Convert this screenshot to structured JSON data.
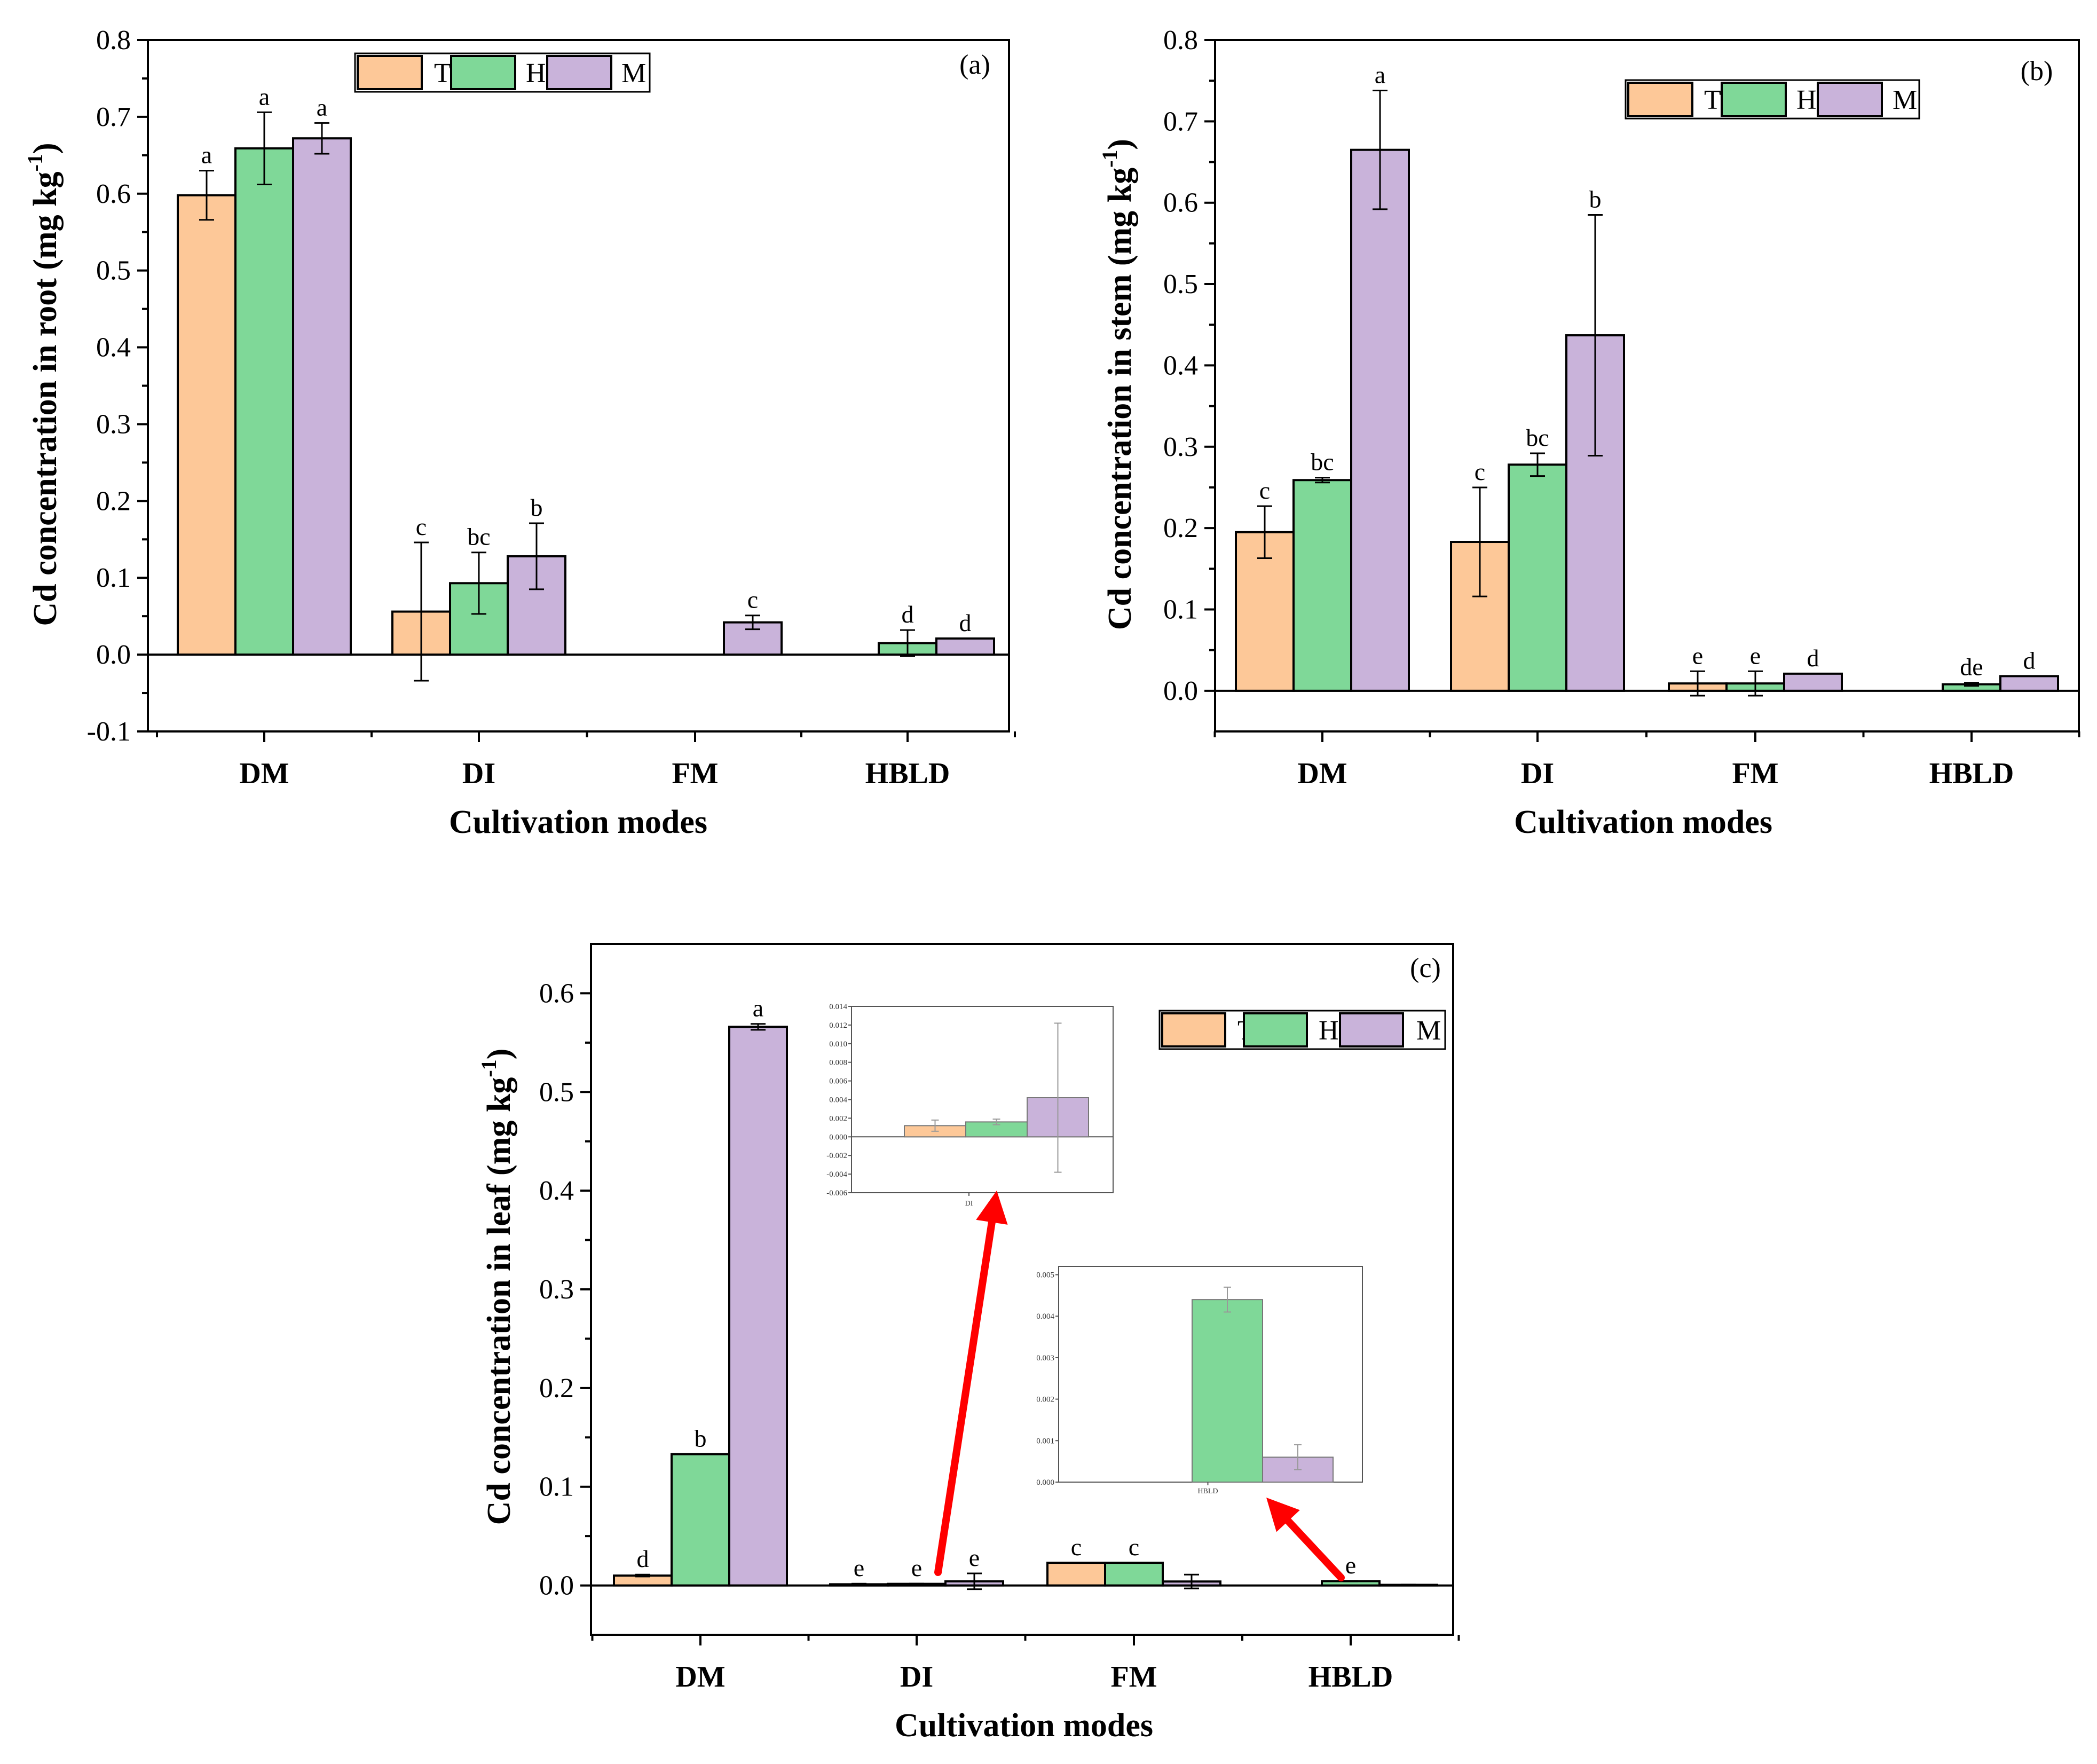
{
  "colors": {
    "T": "#FDC898",
    "H": "#7FD898",
    "M": "#C9B3DA",
    "arrow": "#FF0000",
    "axis": "#000000"
  },
  "chart_data": [
    {
      "id": "a",
      "type": "bar",
      "panel_label": "(a)",
      "ylabel": "Cd concentration in root (mg kg-1)",
      "ylabel_main": "Cd concentration in root (mg kg",
      "ylabel_sup": "-1",
      "ylabel_close": ")",
      "xlabel": "Cultivation modes",
      "categories": [
        "DM",
        "DI",
        "FM",
        "HBLD"
      ],
      "ylim": [
        -0.1,
        0.8
      ],
      "yticks": [
        -0.1,
        0.0,
        0.1,
        0.2,
        0.3,
        0.4,
        0.5,
        0.6,
        0.7,
        0.8
      ],
      "ytick_labels": [
        "-0.1",
        "0.0",
        "0.1",
        "0.2",
        "0.3",
        "0.4",
        "0.5",
        "0.6",
        "0.7",
        "0.8"
      ],
      "legend": [
        "T",
        "H",
        "M"
      ],
      "legend_position": "top-right",
      "series": [
        {
          "name": "T",
          "values": [
            0.598,
            0.056,
            null,
            null
          ],
          "errors": [
            0.032,
            0.09,
            null,
            null
          ],
          "letters": [
            "a",
            "c",
            "",
            ""
          ]
        },
        {
          "name": "H",
          "values": [
            0.659,
            0.093,
            null,
            0.015
          ],
          "errors": [
            0.047,
            0.04,
            null,
            0.017
          ],
          "letters": [
            "a",
            "bc",
            "",
            "d"
          ]
        },
        {
          "name": "M",
          "values": [
            0.672,
            0.128,
            0.042,
            0.021
          ],
          "errors": [
            0.02,
            0.043,
            0.009,
            0.0
          ],
          "letters": [
            "a",
            "b",
            "c",
            "d"
          ]
        }
      ]
    },
    {
      "id": "b",
      "type": "bar",
      "panel_label": "(b)",
      "ylabel": "Cd concentration in stem (mg kg-1)",
      "ylabel_main": "Cd concentration in stem (mg kg",
      "ylabel_sup": "-1",
      "ylabel_close": ")",
      "xlabel": "Cultivation modes",
      "categories": [
        "DM",
        "DI",
        "FM",
        "HBLD"
      ],
      "ylim": [
        -0.05,
        0.8
      ],
      "yticks": [
        0.0,
        0.1,
        0.2,
        0.3,
        0.4,
        0.5,
        0.6,
        0.7,
        0.8
      ],
      "ytick_labels": [
        "0.0",
        "0.1",
        "0.2",
        "0.3",
        "0.4",
        "0.5",
        "0.6",
        "0.7",
        "0.8"
      ],
      "legend": [
        "T",
        "H",
        "M"
      ],
      "legend_position": "top-right",
      "series": [
        {
          "name": "T",
          "values": [
            0.195,
            0.183,
            0.009,
            null
          ],
          "errors": [
            0.032,
            0.067,
            0.015,
            null
          ],
          "letters": [
            "c",
            "c",
            "e",
            ""
          ]
        },
        {
          "name": "H",
          "values": [
            0.259,
            0.278,
            0.009,
            0.008
          ],
          "errors": [
            0.003,
            0.014,
            0.015,
            0.002
          ],
          "letters": [
            "bc",
            "bc",
            "e",
            "de"
          ]
        },
        {
          "name": "M",
          "values": [
            0.665,
            0.437,
            0.021,
            0.018
          ],
          "errors": [
            0.073,
            0.148,
            0.0,
            0.0
          ],
          "letters": [
            "a",
            "b",
            "d",
            "d"
          ]
        }
      ]
    },
    {
      "id": "c",
      "type": "bar",
      "panel_label": "(c)",
      "ylabel": "Cd concentration in leaf (mg kg-1)",
      "ylabel_main": "Cd concentration in leaf (mg kg",
      "ylabel_sup": "-1",
      "ylabel_close": ")",
      "xlabel": "Cultivation modes",
      "categories": [
        "DM",
        "DI",
        "FM",
        "HBLD"
      ],
      "ylim": [
        -0.05,
        0.65
      ],
      "yticks": [
        0.0,
        0.1,
        0.2,
        0.3,
        0.4,
        0.5,
        0.6
      ],
      "ytick_labels": [
        "0.0",
        "0.1",
        "0.2",
        "0.3",
        "0.4",
        "0.5",
        "0.6"
      ],
      "legend": [
        "T",
        "H",
        "M"
      ],
      "legend_position": "top-right",
      "series": [
        {
          "name": "T",
          "values": [
            0.01,
            0.0012,
            0.023,
            null
          ],
          "errors": [
            0.001,
            0.0006,
            0.0,
            null
          ],
          "letters": [
            "d",
            "e",
            "c",
            ""
          ]
        },
        {
          "name": "H",
          "values": [
            0.133,
            0.0016,
            0.023,
            0.0044
          ],
          "errors": [
            0.0,
            0.0003,
            0.0,
            0.0003
          ],
          "letters": [
            "b",
            "e",
            "c",
            "e"
          ]
        },
        {
          "name": "M",
          "values": [
            0.566,
            0.0042,
            0.004,
            0.0006
          ],
          "errors": [
            0.003,
            0.008,
            0.007,
            0.0003
          ],
          "letters": [
            "a",
            "e",
            "",
            ""
          ]
        }
      ],
      "insets": [
        {
          "id": "c-inset-DI",
          "type": "bar",
          "category": "DI",
          "xtick_label": "DI",
          "ylim": [
            -0.006,
            0.014
          ],
          "yticks": [
            -0.006,
            -0.004,
            -0.002,
            0.0,
            0.002,
            0.004,
            0.006,
            0.008,
            0.01,
            0.012,
            0.014
          ],
          "ytick_labels": [
            "-0.006",
            "-0.004",
            "-0.002",
            "0.000",
            "0.002",
            "0.004",
            "0.006",
            "0.008",
            "0.010",
            "0.012",
            "0.014"
          ],
          "series": [
            {
              "name": "T",
              "value": 0.0012,
              "error": 0.0006
            },
            {
              "name": "H",
              "value": 0.0016,
              "error": 0.0003
            },
            {
              "name": "M",
              "value": 0.0042,
              "error": 0.008
            }
          ]
        },
        {
          "id": "c-inset-HBLD",
          "type": "bar",
          "category": "HBLD",
          "xtick_label": "HBLD",
          "ylim": [
            0.0,
            0.0052
          ],
          "yticks": [
            0.0,
            0.001,
            0.002,
            0.003,
            0.004,
            0.005
          ],
          "ytick_labels": [
            "0.000",
            "0.001",
            "0.002",
            "0.003",
            "0.004",
            "0.005"
          ],
          "series": [
            {
              "name": "T",
              "value": null,
              "error": null
            },
            {
              "name": "H",
              "value": 0.0044,
              "error": 0.0003
            },
            {
              "name": "M",
              "value": 0.0006,
              "error": 0.0003
            }
          ]
        }
      ]
    }
  ]
}
